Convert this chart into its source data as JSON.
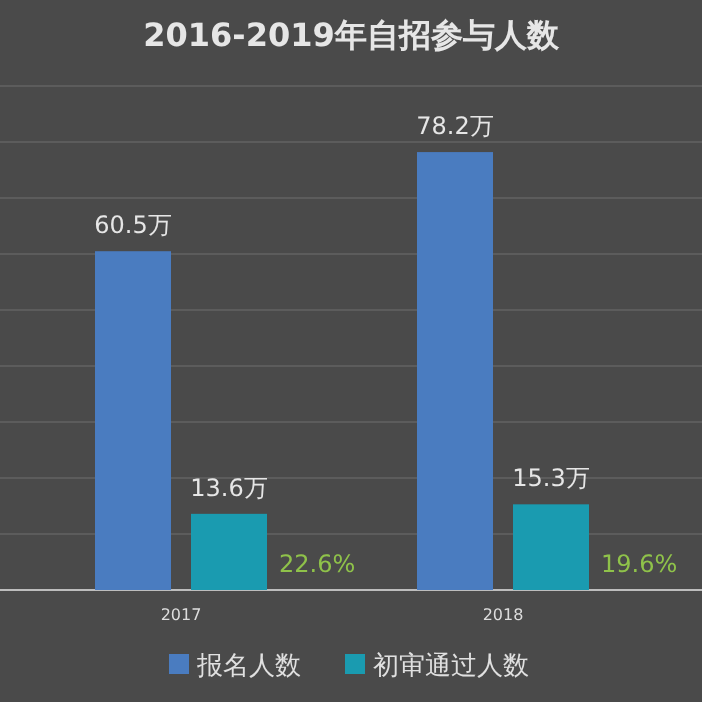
{
  "chart_data": {
    "type": "bar",
    "title": "2016-2019年自招参与人数",
    "categories": [
      "2017",
      "2018"
    ],
    "series": [
      {
        "name": "报名人数",
        "color": "#4a7cc0",
        "values": [
          60.5,
          78.2
        ],
        "value_labels": [
          "60.5万",
          "78.2万"
        ]
      },
      {
        "name": "初审通过人数",
        "color": "#1a9bb0",
        "values": [
          13.6,
          15.3
        ],
        "value_labels": [
          "13.6万",
          "15.3万"
        ]
      }
    ],
    "ylim": [
      0,
      90
    ],
    "yticks": [
      {
        "value": 0,
        "label": null
      },
      {
        "value": 10,
        "label": null
      },
      {
        "value": 20,
        "label": null
      },
      {
        "value": 30,
        "label": null
      },
      {
        "value": 40,
        "label": null
      },
      {
        "value": 50,
        "label": null
      },
      {
        "value": 60,
        "label": null
      },
      {
        "value": 70,
        "label": null
      },
      {
        "value": 80,
        "label": null
      },
      {
        "value": 90,
        "label": null
      }
    ],
    "grid": "y",
    "legend": "bottom",
    "annotations": [
      "22.6%",
      "19.6%"
    ]
  }
}
